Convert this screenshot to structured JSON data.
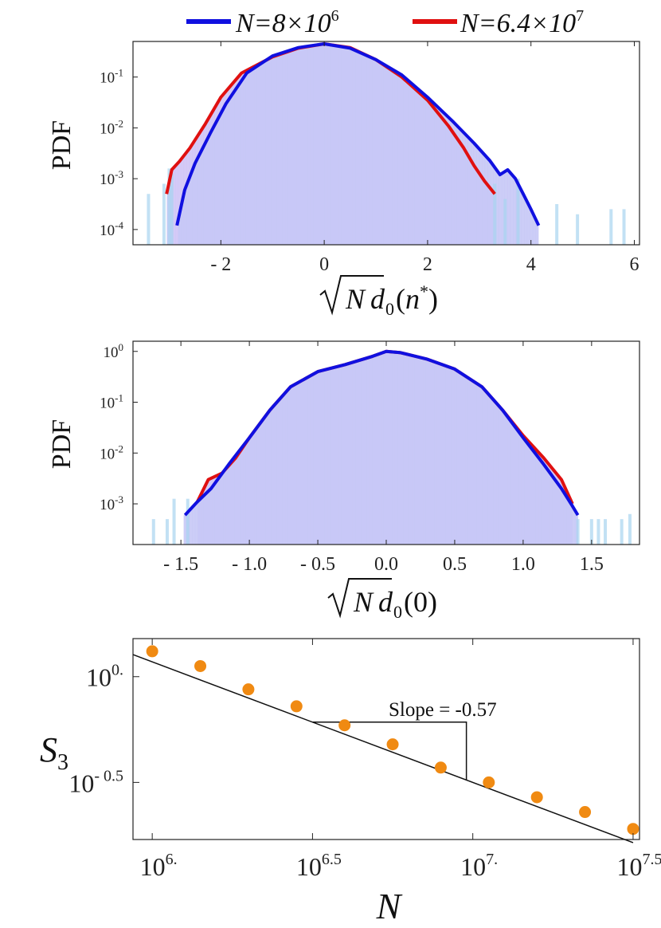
{
  "legend": {
    "entries": [
      {
        "label": "N=8×10",
        "sup": "6",
        "color": "#1010e0"
      },
      {
        "label": "N=6.4×10",
        "sup": "7",
        "color": "#e01010"
      }
    ]
  },
  "chart_data": [
    {
      "type": "line",
      "xlabel": "√N d₀(n*)",
      "ylabel": "PDF",
      "xlim": [
        -3.7,
        6.1
      ],
      "ylog": true,
      "yticks_exp": [
        "-1",
        "-2",
        "-3",
        "-4"
      ],
      "xticks": [
        -2,
        0,
        2,
        4,
        6
      ],
      "xtick_labels": [
        "- 2",
        "0",
        "2",
        "4",
        "6"
      ],
      "series": [
        {
          "name": "N=8×10⁶",
          "color": "#1010e0",
          "hist_color": "#a8d4f0",
          "x": [
            -2.85,
            -2.7,
            -2.5,
            -2.2,
            -1.9,
            -1.5,
            -1.0,
            -0.5,
            0.0,
            0.5,
            1.0,
            1.5,
            2.0,
            2.5,
            2.9,
            3.2,
            3.4,
            3.55,
            3.7,
            3.85,
            4.0,
            4.15
          ],
          "y": [
            0.00012,
            0.0006,
            0.002,
            0.008,
            0.03,
            0.12,
            0.26,
            0.38,
            0.45,
            0.37,
            0.22,
            0.11,
            0.04,
            0.013,
            0.005,
            0.0023,
            0.0012,
            0.0015,
            0.001,
            0.0005,
            0.00025,
            0.00012
          ]
        },
        {
          "name": "N=6.4×10⁷",
          "color": "#e01010",
          "hist_color": "#d7b4f2",
          "x": [
            -3.05,
            -2.95,
            -2.8,
            -2.6,
            -2.3,
            -2.0,
            -1.6,
            -1.0,
            -0.5,
            0.0,
            0.5,
            1.0,
            1.5,
            2.0,
            2.4,
            2.7,
            2.9,
            3.1,
            3.3
          ],
          "y": [
            0.0005,
            0.0015,
            0.0022,
            0.004,
            0.012,
            0.04,
            0.12,
            0.25,
            0.37,
            0.45,
            0.38,
            0.22,
            0.1,
            0.035,
            0.011,
            0.004,
            0.0018,
            0.0009,
            0.0005
          ]
        }
      ]
    },
    {
      "type": "line",
      "xlabel": "√N d₀(0)",
      "ylabel": "PDF",
      "xlim": [
        -1.85,
        1.85
      ],
      "ylog": true,
      "yticks_exp": [
        "0",
        "-1",
        "-2",
        "-3"
      ],
      "xticks": [
        -1.5,
        -1.0,
        -0.5,
        0.0,
        0.5,
        1.0,
        1.5
      ],
      "xtick_labels": [
        "- 1.5",
        "- 1.0",
        "- 0.5",
        "0.0",
        "0.5",
        "1.0",
        "1.5"
      ],
      "series": [
        {
          "name": "N=8×10⁶",
          "color": "#1010e0",
          "hist_color": "#a8d4f0",
          "x": [
            -1.47,
            -1.38,
            -1.28,
            -1.15,
            -1.0,
            -0.85,
            -0.7,
            -0.5,
            -0.3,
            -0.1,
            0.0,
            0.1,
            0.3,
            0.5,
            0.7,
            0.85,
            1.0,
            1.15,
            1.28,
            1.35,
            1.4
          ],
          "y": [
            0.0006,
            0.0011,
            0.002,
            0.006,
            0.02,
            0.07,
            0.2,
            0.4,
            0.55,
            0.8,
            1.0,
            0.95,
            0.7,
            0.45,
            0.2,
            0.07,
            0.02,
            0.006,
            0.002,
            0.001,
            0.0006
          ]
        },
        {
          "name": "N=6.4×10⁷",
          "color": "#e01010",
          "hist_color": "#d7b4f2",
          "x": [
            -1.38,
            -1.3,
            -1.2,
            -1.1,
            -1.0,
            -0.85,
            -0.7,
            -0.5,
            -0.3,
            -0.1,
            0.0,
            0.1,
            0.3,
            0.5,
            0.7,
            0.85,
            1.0,
            1.15,
            1.28,
            1.36
          ],
          "y": [
            0.0011,
            0.003,
            0.004,
            0.008,
            0.02,
            0.07,
            0.2,
            0.4,
            0.55,
            0.8,
            1.0,
            0.95,
            0.7,
            0.45,
            0.2,
            0.07,
            0.022,
            0.008,
            0.003,
            0.001
          ]
        }
      ]
    },
    {
      "type": "scatter",
      "xlabel": "N",
      "ylabel": "S₃",
      "xlog": true,
      "ylog": true,
      "xlim_log10": [
        5.94,
        7.52
      ],
      "ylim_log10": [
        -0.77,
        0.18
      ],
      "xticks_exp": [
        "6.",
        "6.5",
        "7.",
        "7.5"
      ],
      "yticks_exp": [
        "0.",
        "- 0.5"
      ],
      "annotation": "Slope = -0.57",
      "fit_slope": -0.57,
      "series": [
        {
          "name": "S3",
          "color": "#f08a12",
          "log10_N": [
            6.0,
            6.15,
            6.3,
            6.45,
            6.6,
            6.75,
            6.9,
            7.05,
            7.2,
            7.35,
            7.5
          ],
          "log10_S3": [
            0.12,
            0.05,
            -0.06,
            -0.14,
            -0.23,
            -0.32,
            -0.43,
            -0.5,
            -0.57,
            -0.64,
            -0.72
          ]
        }
      ]
    }
  ]
}
